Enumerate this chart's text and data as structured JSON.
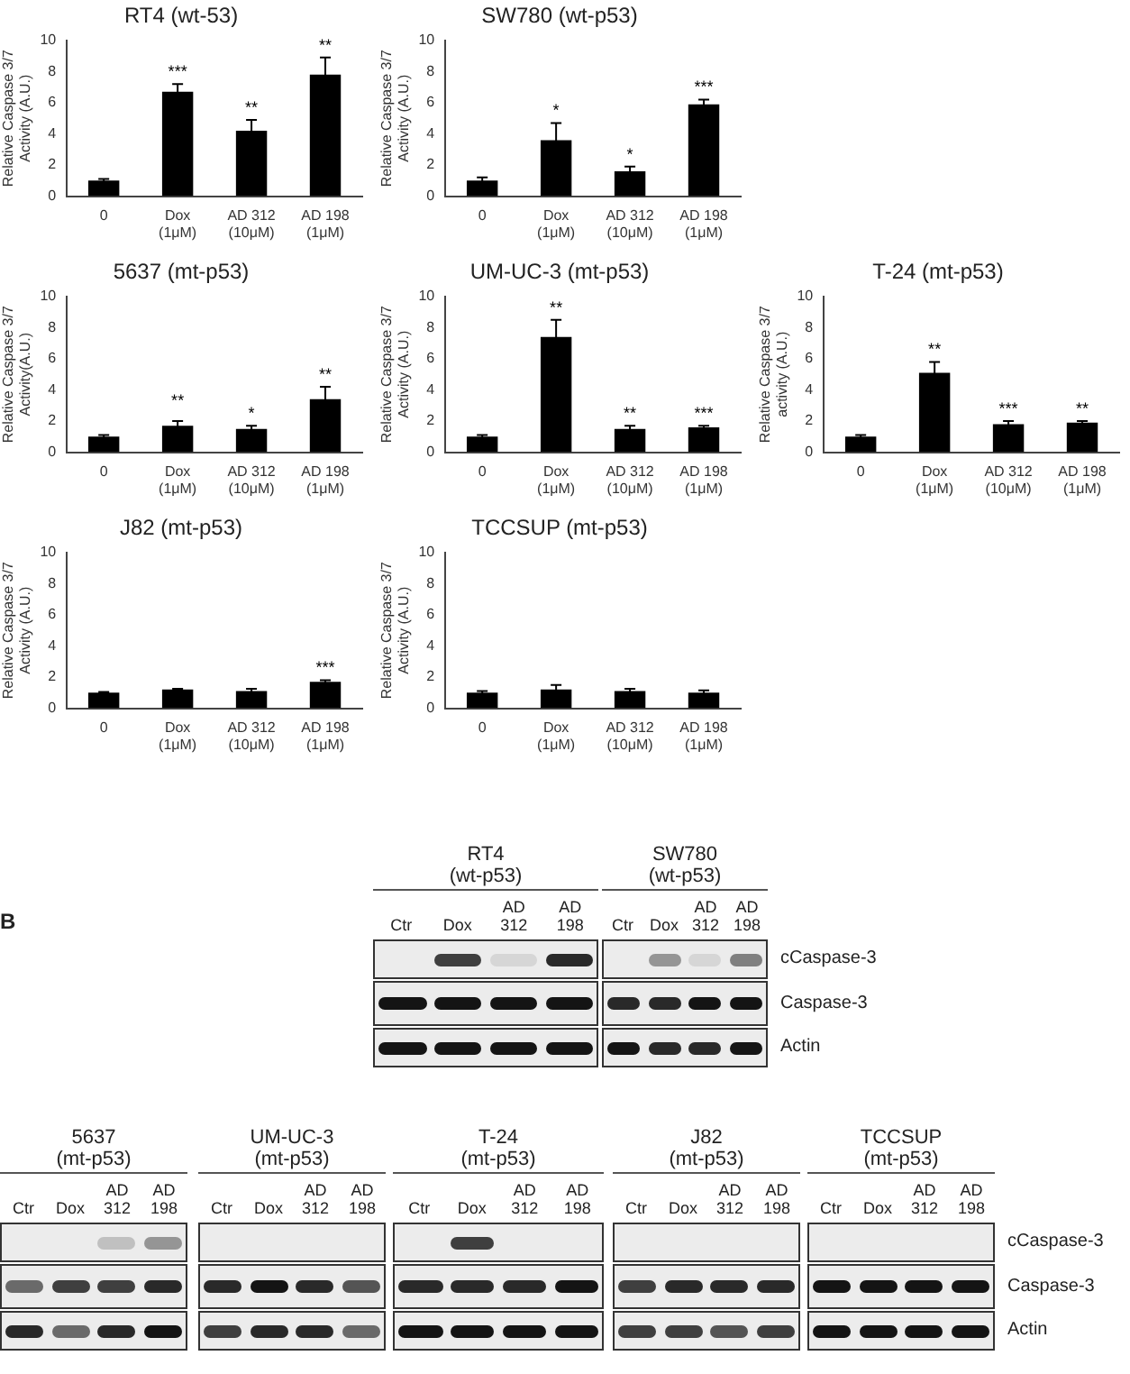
{
  "chart_data": [
    {
      "type": "bar",
      "title": "RT4 (wt-53)",
      "ylabel": "Relative Caspase 3/7\nActivity (A.U.)",
      "categories": [
        "0",
        "Dox (1μM)",
        "AD 312 (10μM)",
        "AD 198 (1μM)"
      ],
      "values": [
        1.0,
        6.7,
        4.2,
        7.8
      ],
      "errors": [
        0.1,
        0.5,
        0.7,
        1.1
      ],
      "color": "#000000",
      "ylim": [
        0,
        10
      ],
      "yticks": [
        0,
        2,
        4,
        6,
        8,
        10
      ],
      "grid": false,
      "annotations": [
        {
          "text": "***",
          "x": "Dox (1μM)",
          "y": 7.2
        },
        {
          "text": "**",
          "x": "AD 312 (10μM)",
          "y": 4.9
        },
        {
          "text": "**",
          "x": "AD 198 (1μM)",
          "y": 8.9
        }
      ]
    },
    {
      "type": "bar",
      "title": "SW780 (wt-p53)",
      "ylabel": "Relative Caspase 3/7\nActivity (A.U.)",
      "categories": [
        "0",
        "Dox (1μM)",
        "AD 312 (10μM)",
        "AD 198 (1μM)"
      ],
      "values": [
        1.0,
        3.6,
        1.6,
        5.9
      ],
      "errors": [
        0.2,
        1.1,
        0.3,
        0.3
      ],
      "color": "#000000",
      "ylim": [
        0,
        10
      ],
      "yticks": [
        0,
        2,
        4,
        6,
        8,
        10
      ],
      "grid": false,
      "annotations": [
        {
          "text": "*",
          "x": "Dox (1μM)",
          "y": 4.7
        },
        {
          "text": "*",
          "x": "AD 312 (10μM)",
          "y": 1.9
        },
        {
          "text": "***",
          "x": "AD 198 (1μM)",
          "y": 6.2
        }
      ]
    },
    {
      "type": "bar",
      "title": "5637 (mt-p53)",
      "ylabel": "Relative Caspase 3/7\nActivity(A.U.)",
      "categories": [
        "0",
        "Dox (1μM)",
        "AD 312 (10μM)",
        "AD 198 (1μM)"
      ],
      "values": [
        1.0,
        1.7,
        1.5,
        3.4
      ],
      "errors": [
        0.1,
        0.3,
        0.2,
        0.8
      ],
      "color": "#000000",
      "ylim": [
        0,
        10
      ],
      "yticks": [
        0,
        2,
        4,
        6,
        8,
        10
      ],
      "grid": false,
      "annotations": [
        {
          "text": "**",
          "x": "Dox (1μM)",
          "y": 2.5
        },
        {
          "text": "*",
          "x": "AD 312 (10μM)",
          "y": 1.7
        },
        {
          "text": "**",
          "x": "AD 198 (1μM)",
          "y": 4.2
        }
      ]
    },
    {
      "type": "bar",
      "title": "UM-UC-3 (mt-p53)",
      "ylabel": "Relative Caspase 3/7\nActivity (A.U.)",
      "categories": [
        "0",
        "Dox (1μM)",
        "AD 312 (10μM)",
        "AD 198 (1μM)"
      ],
      "values": [
        1.0,
        7.4,
        1.5,
        1.6
      ],
      "errors": [
        0.1,
        1.1,
        0.2,
        0.1
      ],
      "color": "#000000",
      "ylim": [
        0,
        10
      ],
      "yticks": [
        0,
        2,
        4,
        6,
        8,
        10
      ],
      "grid": false,
      "annotations": [
        {
          "text": "**",
          "x": "Dox (1μM)",
          "y": 8.5
        },
        {
          "text": "**",
          "x": "AD 312 (10μM)",
          "y": 1.7
        },
        {
          "text": "***",
          "x": "AD 198 (1μM)",
          "y": 1.7
        }
      ]
    },
    {
      "type": "bar",
      "title": "T-24 (mt-p53)",
      "ylabel": "Relative Caspase 3/7\nactivity (A.U.)",
      "categories": [
        "0",
        "Dox (1μM)",
        "AD 312 (10μM)",
        "AD 198 (1μM)"
      ],
      "values": [
        1.0,
        5.1,
        1.8,
        1.9
      ],
      "errors": [
        0.1,
        0.7,
        0.2,
        0.1
      ],
      "color": "#000000",
      "ylim": [
        0,
        10
      ],
      "yticks": [
        0,
        2,
        4,
        6,
        8,
        10
      ],
      "grid": false,
      "annotations": [
        {
          "text": "**",
          "x": "Dox (1μM)",
          "y": 5.8
        },
        {
          "text": "***",
          "x": "AD 312 (10μM)",
          "y": 2.0
        },
        {
          "text": "**",
          "x": "AD 198 (1μM)",
          "y": 2.0
        }
      ]
    },
    {
      "type": "bar",
      "title": "J82 (mt-p53)",
      "ylabel": "Relative Caspase 3/7\nActivity (A.U.)",
      "categories": [
        "0",
        "Dox (1μM)",
        "AD 312 (10μM)",
        "AD 198 (1μM)"
      ],
      "values": [
        1.0,
        1.2,
        1.1,
        1.7
      ],
      "errors": [
        0.05,
        0.05,
        0.15,
        0.1
      ],
      "color": "#000000",
      "ylim": [
        0,
        10
      ],
      "yticks": [
        0,
        2,
        4,
        6,
        8,
        10
      ],
      "grid": false,
      "annotations": [
        {
          "text": "***",
          "x": "AD 198 (1μM)",
          "y": 1.8
        }
      ]
    },
    {
      "type": "bar",
      "title": "TCCSUP (mt-p53)",
      "ylabel": "Relative Caspase 3/7\nActivity (A.U.)",
      "categories": [
        "0",
        "Dox (1μM)",
        "AD 312 (10μM)",
        "AD 198 (1μM)"
      ],
      "values": [
        1.0,
        1.2,
        1.1,
        1.0
      ],
      "errors": [
        0.1,
        0.3,
        0.15,
        0.15
      ],
      "color": "#000000",
      "ylim": [
        0,
        10
      ],
      "yticks": [
        0,
        2,
        4,
        6,
        8,
        10
      ],
      "grid": false
    },
    {
      "type": "other",
      "title": "RT4",
      "subtitle": "(wt-p53)",
      "categories": [
        "Ctr",
        "Dox",
        "AD 312",
        "AD 198"
      ],
      "annotations": [
        "B"
      ]
    },
    {
      "type": "other",
      "title": "SW780",
      "subtitle": "(wt-p53)",
      "categories": [
        "Ctr",
        "Dox",
        "AD 312",
        "AD 198"
      ],
      "annotations": [
        "cCaspase-3",
        "Caspase-3",
        "Actin"
      ]
    },
    {
      "type": "other",
      "title": "5637",
      "subtitle": "(mt-p53)",
      "categories": [
        "Ctr",
        "Dox",
        "AD 312",
        "AD 198"
      ]
    },
    {
      "type": "other",
      "title": "UM-UC-3",
      "subtitle": "(mt-p53)",
      "categories": [
        "Ctr",
        "Dox",
        "AD 312",
        "AD 198"
      ]
    },
    {
      "type": "other",
      "title": "T-24",
      "subtitle": "(mt-p53)",
      "categories": [
        "Ctr",
        "Dox",
        "AD 312",
        "AD 198"
      ]
    },
    {
      "type": "other",
      "title": "J82",
      "subtitle": "(mt-p53)",
      "categories": [
        "Ctr",
        "Dox",
        "AD 312",
        "AD 198"
      ]
    },
    {
      "type": "other",
      "title": "TCCSUP",
      "subtitle": "(mt-p53)",
      "categories": [
        "Ctr",
        "Dox",
        "AD 312",
        "AD 198"
      ],
      "annotations": [
        "cCaspase-3",
        "Caspase-3",
        "Actin"
      ]
    }
  ]
}
